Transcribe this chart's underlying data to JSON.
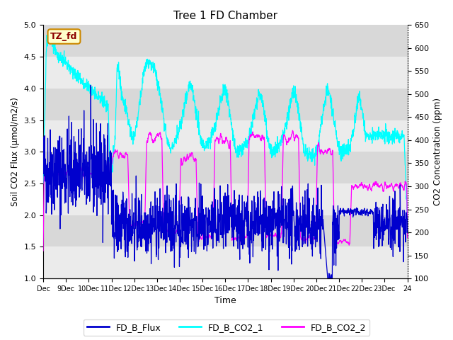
{
  "title": "Tree 1 FD Chamber",
  "xlabel": "Time",
  "ylabel_left": "Soil CO2 Flux (μmol/m2/s)",
  "ylabel_right": "CO2 Concentration (ppm)",
  "ylim_left": [
    1.0,
    5.0
  ],
  "ylim_right": [
    100,
    650
  ],
  "x_tick_labels": [
    "Dec",
    "9Dec",
    "10Dec",
    "11Dec",
    "12Dec",
    "13Dec",
    "14Dec",
    "15Dec",
    "16Dec",
    "17Dec",
    "18Dec",
    "19Dec",
    "20Dec",
    "21Dec",
    "22Dec",
    "23Dec",
    "24"
  ],
  "figure_bg": "#ffffff",
  "plot_bg_light": "#ebebeb",
  "plot_bg_dark": "#d8d8d8",
  "flux_color": "#0000CD",
  "co2_1_color": "#00FFFF",
  "co2_2_color": "#FF00FF",
  "legend_labels": [
    "FD_B_Flux",
    "FD_B_CO2_1",
    "FD_B_CO2_2"
  ],
  "annotation_text": "TZ_fd",
  "annotation_bg": "#FFFFCC",
  "annotation_border": "#CC8800",
  "n_points": 1600,
  "seed": 42
}
